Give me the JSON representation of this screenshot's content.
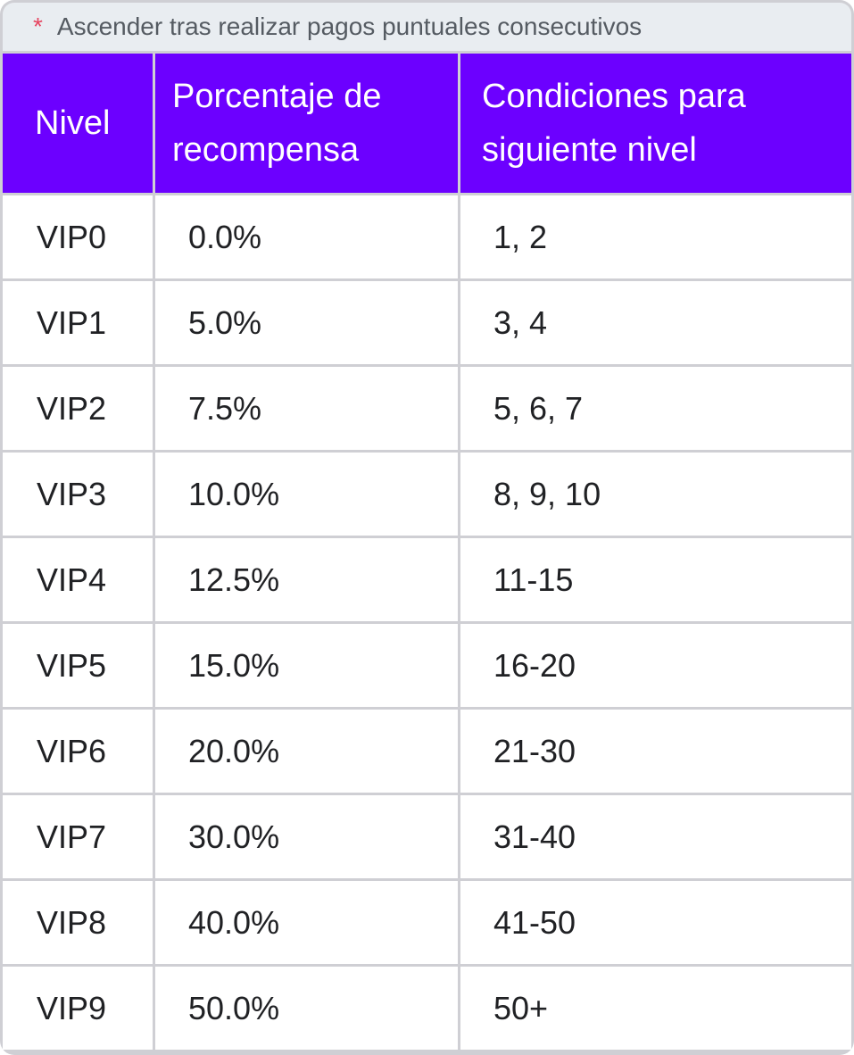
{
  "note": {
    "marker": "*",
    "text": "Ascender tras realizar pagos puntuales consecutivos"
  },
  "table": {
    "headers": {
      "level": "Nivel",
      "reward_line1": "Porcentaje de",
      "reward_line2": "recompensa",
      "conditions_line1": "Condiciones para",
      "conditions_line2": "siguiente nivel"
    },
    "rows": [
      {
        "level": "VIP0",
        "reward": "0.0%",
        "conditions": "1, 2"
      },
      {
        "level": "VIP1",
        "reward": "5.0%",
        "conditions": "3, 4"
      },
      {
        "level": "VIP2",
        "reward": "7.5%",
        "conditions": "5, 6, 7"
      },
      {
        "level": "VIP3",
        "reward": "10.0%",
        "conditions": "8, 9, 10"
      },
      {
        "level": "VIP4",
        "reward": "12.5%",
        "conditions": "11-15"
      },
      {
        "level": "VIP5",
        "reward": "15.0%",
        "conditions": "16-20"
      },
      {
        "level": "VIP6",
        "reward": "20.0%",
        "conditions": "21-30"
      },
      {
        "level": "VIP7",
        "reward": "30.0%",
        "conditions": "31-40"
      },
      {
        "level": "VIP8",
        "reward": "40.0%",
        "conditions": "41-50"
      },
      {
        "level": "VIP9",
        "reward": "50.0%",
        "conditions": "50+"
      }
    ]
  },
  "colors": {
    "header_bg": "#6c00ff",
    "note_bg": "#e9edf1",
    "asterisk": "#e64560",
    "grid": "#cfcfd4"
  }
}
